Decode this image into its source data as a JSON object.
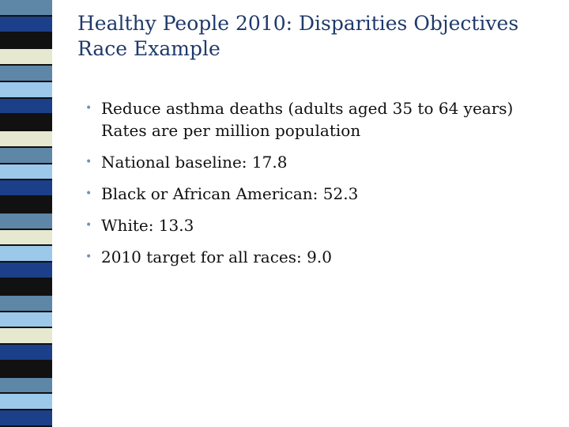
{
  "slide": {
    "title_lines": [
      "Healthy People 2010: Disparities Objectives",
      "Race Example"
    ],
    "bullet_glyph": "•",
    "bullets": [
      {
        "lines": [
          "Reduce asthma deaths (adults aged 35 to 64 years)",
          "Rates are per million population"
        ]
      },
      {
        "lines": [
          "National baseline:   17.8"
        ]
      },
      {
        "lines": [
          "Black or African American:   52.3"
        ]
      },
      {
        "lines": [
          "White:   13.3"
        ]
      },
      {
        "lines": [
          "2010 target for all races:   9.0"
        ]
      }
    ]
  },
  "colors": {
    "title": "#1f3a6a",
    "bullet_glyph": "#6f8fb8",
    "stripe_palette": [
      "#5e86a6",
      "#1c3f8a",
      "#111111",
      "#e6e9d0",
      "#9cc8ea"
    ]
  },
  "decoration": {
    "stripe_sequence": [
      "#5e86a6",
      "#1c3f8a",
      "#111111",
      "#e6e9d0",
      "#5e86a6",
      "#9cc8ea",
      "#1c3f8a",
      "#111111",
      "#e6e9d0",
      "#5e86a6",
      "#9cc8ea",
      "#1c3f8a",
      "#111111",
      "#5e86a6",
      "#e6e9d0",
      "#9cc8ea",
      "#1c3f8a",
      "#111111",
      "#5e86a6",
      "#9cc8ea",
      "#e6e9d0",
      "#1c3f8a",
      "#111111",
      "#5e86a6",
      "#9cc8ea",
      "#1c3f8a"
    ]
  }
}
